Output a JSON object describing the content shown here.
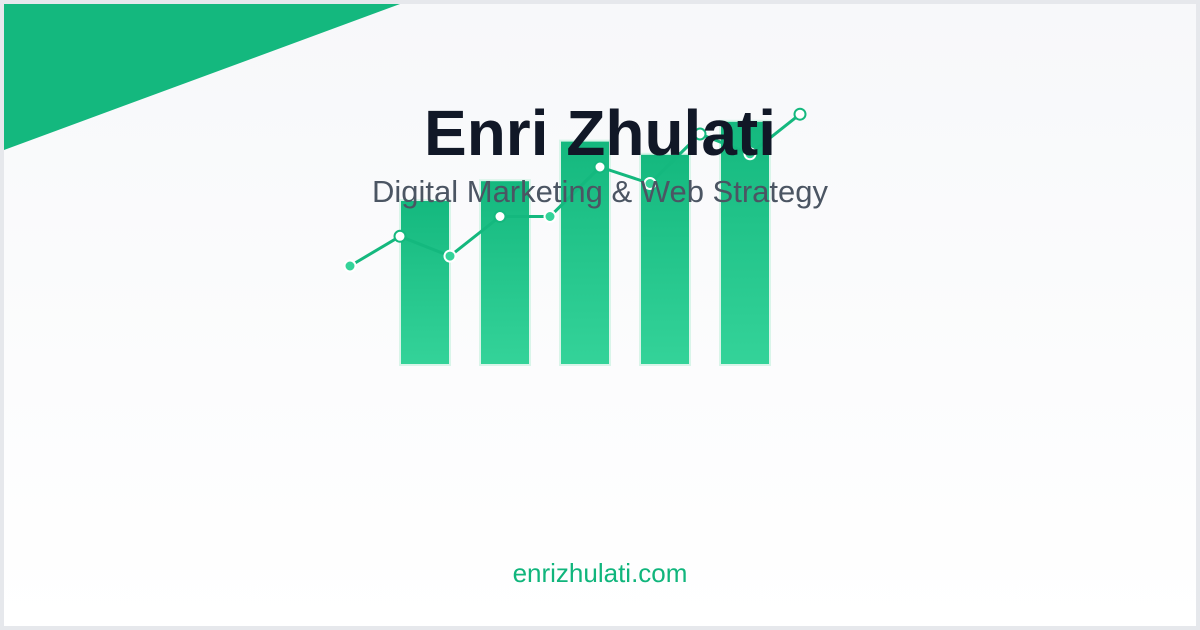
{
  "brand": {
    "name": "Enri Zhulati",
    "tagline": "Digital Marketing & Web Strategy",
    "website": "enrizhulati.com"
  },
  "colors": {
    "accent": "#14b87e",
    "accent_light": "#34d399",
    "title": "#111827",
    "subtitle": "#4b5563"
  },
  "graphic": {
    "bars": [
      0.5,
      0.56,
      0.68,
      0.64,
      0.74
    ],
    "line": [
      0.3,
      0.39,
      0.33,
      0.45,
      0.45,
      0.6,
      0.55,
      0.7,
      0.64,
      0.76
    ]
  }
}
